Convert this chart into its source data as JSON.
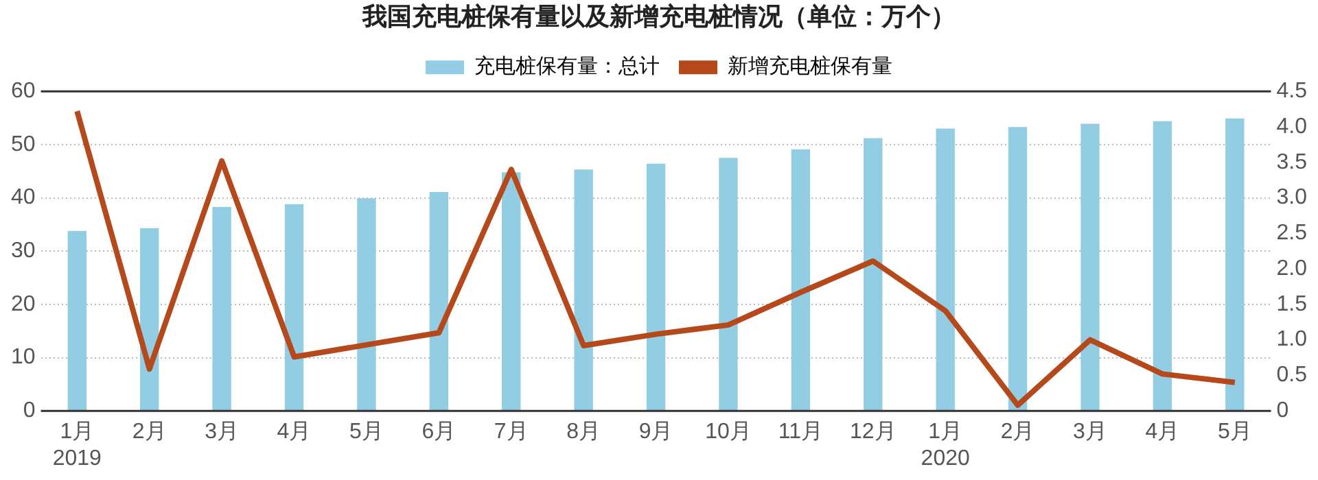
{
  "chart_data": {
    "type": "bar",
    "title": "我国充电桩保有量以及新增充电桩情况（单位：万个）",
    "categories": [
      "1月\n2019",
      "2月",
      "3月",
      "4月",
      "5月",
      "6月",
      "7月",
      "8月",
      "9月",
      "10月",
      "11月",
      "12月",
      "1月\n2020",
      "2月",
      "3月",
      "4月",
      "5月"
    ],
    "series": [
      {
        "name": "充电桩保有量：总计",
        "color": "#93cde3",
        "values": [
          33.8,
          34.3,
          38.3,
          38.8,
          39.9,
          41.1,
          44.8,
          45.3,
          46.4,
          47.5,
          49.1,
          51.2,
          53.0,
          53.3,
          53.9,
          54.4,
          54.9
        ]
      },
      {
        "name": "新增充电桩保有量",
        "type": "line",
        "axis": "y2",
        "color": "#b5491c",
        "values": [
          4.22,
          0.59,
          3.52,
          0.76,
          0.93,
          1.1,
          3.4,
          0.92,
          1.08,
          1.21,
          1.67,
          2.11,
          1.41,
          0.08,
          1.0,
          0.52,
          0.4
        ]
      }
    ],
    "ylim": [
      0,
      60
    ],
    "yticks": [
      0,
      10,
      20,
      30,
      40,
      50,
      60
    ],
    "y2lim": [
      0,
      4.5
    ],
    "y2ticks": [
      0,
      {
        "value": 0.5,
        "label": "0.5"
      },
      {
        "value": 1,
        "label": "1.0"
      },
      {
        "value": 1.5,
        "label": "1.5"
      },
      {
        "value": 2,
        "label": "2.0"
      },
      {
        "value": 2.5,
        "label": "2.5"
      },
      {
        "value": 3,
        "label": "3.0"
      },
      {
        "value": 3.5,
        "label": "3.5"
      },
      {
        "value": 4,
        "label": "4.0"
      },
      {
        "value": 4.5,
        "label": "4.5"
      }
    ],
    "grid": "y",
    "legend": "top",
    "marker": "none",
    "line_style": "solid"
  }
}
